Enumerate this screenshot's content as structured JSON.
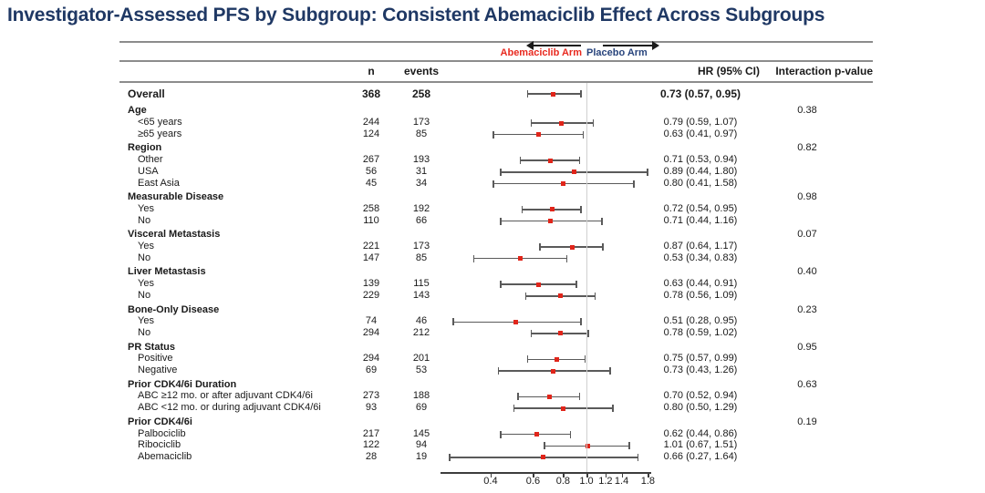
{
  "title": "Investigator-Assessed PFS by Subgroup: Consistent Abemaciclib Effect Across Subgroups",
  "arms": {
    "left": "Abemaciclib Arm",
    "right": "Placebo Arm"
  },
  "columns": {
    "n": "n",
    "events": "events",
    "hr": "HR (95% CI)",
    "p": "Interaction p-value"
  },
  "colors": {
    "title_navy": "#1f3864",
    "abemaciclib_red": "#e8291f",
    "placebo_navy": "#28447c",
    "marker_red": "#e0251a",
    "bar_gray": "#5a5a5a",
    "band_gray": "#ececec",
    "rule_gray": "#8c8c8c",
    "reference_line_gray": "#d0d0d0"
  },
  "chart_data": {
    "type": "scatter",
    "subtype": "forest-plot",
    "title": "Investigator-Assessed PFS by Subgroup: Consistent Abemaciclib Effect Across Subgroups",
    "x_scale": "log",
    "x_range": [
      0.25,
      1.84
    ],
    "x_ticks": [
      0.4,
      0.6,
      0.8,
      1.0,
      1.2,
      1.4,
      1.8
    ],
    "reference_line": 1.0,
    "favors_left_label": "Abemaciclib Arm",
    "favors_right_label": "Placebo Arm",
    "legend_position": "top-center",
    "rows": [
      {
        "kind": "overall",
        "label": "Overall",
        "n": "368",
        "events": "258",
        "hr": 0.73,
        "ci": [
          0.57,
          0.95
        ],
        "hr_text": "0.73 (0.57, 0.95)",
        "shaded": false
      },
      {
        "kind": "group",
        "label": "Age",
        "p": "0.38",
        "shaded": true,
        "items": [
          {
            "label": "<65 years",
            "n": "244",
            "events": "173",
            "hr": 0.79,
            "ci": [
              0.59,
              1.07
            ],
            "hr_text": "0.79 (0.59, 1.07)"
          },
          {
            "label": "≥65 years",
            "n": "124",
            "events": "85",
            "hr": 0.63,
            "ci": [
              0.41,
              0.97
            ],
            "hr_text": "0.63 (0.41, 0.97)"
          }
        ]
      },
      {
        "kind": "group",
        "label": "Region",
        "p": "0.82",
        "shaded": false,
        "items": [
          {
            "label": "Other",
            "n": "267",
            "events": "193",
            "hr": 0.71,
            "ci": [
              0.53,
              0.94
            ],
            "hr_text": "0.71 (0.53, 0.94)"
          },
          {
            "label": "USA",
            "n": "56",
            "events": "31",
            "hr": 0.89,
            "ci": [
              0.44,
              1.8
            ],
            "hr_text": "0.89 (0.44, 1.80)"
          },
          {
            "label": "East Asia",
            "n": "45",
            "events": "34",
            "hr": 0.8,
            "ci": [
              0.41,
              1.58
            ],
            "hr_text": "0.80 (0.41, 1.58)"
          }
        ]
      },
      {
        "kind": "group",
        "label": "Measurable Disease",
        "p": "0.98",
        "shaded": true,
        "items": [
          {
            "label": "Yes",
            "n": "258",
            "events": "192",
            "hr": 0.72,
            "ci": [
              0.54,
              0.95
            ],
            "hr_text": "0.72 (0.54, 0.95)"
          },
          {
            "label": "No",
            "n": "110",
            "events": "66",
            "hr": 0.71,
            "ci": [
              0.44,
              1.16
            ],
            "hr_text": "0.71 (0.44, 1.16)"
          }
        ]
      },
      {
        "kind": "group",
        "label": "Visceral Metastasis",
        "p": "0.07",
        "shaded": false,
        "items": [
          {
            "label": "Yes",
            "n": "221",
            "events": "173",
            "hr": 0.87,
            "ci": [
              0.64,
              1.17
            ],
            "hr_text": "0.87 (0.64, 1.17)"
          },
          {
            "label": "No",
            "n": "147",
            "events": "85",
            "hr": 0.53,
            "ci": [
              0.34,
              0.83
            ],
            "hr_text": "0.53 (0.34, 0.83)"
          }
        ]
      },
      {
        "kind": "group",
        "label": "Liver Metastasis",
        "p": "0.40",
        "shaded": true,
        "items": [
          {
            "label": "Yes",
            "n": "139",
            "events": "115",
            "hr": 0.63,
            "ci": [
              0.44,
              0.91
            ],
            "hr_text": "0.63 (0.44, 0.91)"
          },
          {
            "label": "No",
            "n": "229",
            "events": "143",
            "hr": 0.78,
            "ci": [
              0.56,
              1.09
            ],
            "hr_text": "0.78 (0.56, 1.09)"
          }
        ]
      },
      {
        "kind": "group",
        "label": "Bone-Only Disease",
        "p": "0.23",
        "shaded": false,
        "items": [
          {
            "label": "Yes",
            "n": "74",
            "events": "46",
            "hr": 0.51,
            "ci": [
              0.28,
              0.95
            ],
            "hr_text": "0.51 (0.28, 0.95)"
          },
          {
            "label": "No",
            "n": "294",
            "events": "212",
            "hr": 0.78,
            "ci": [
              0.59,
              1.02
            ],
            "hr_text": "0.78 (0.59, 1.02)"
          }
        ]
      },
      {
        "kind": "group",
        "label": "PR Status",
        "p": "0.95",
        "shaded": true,
        "items": [
          {
            "label": "Positive",
            "n": "294",
            "events": "201",
            "hr": 0.75,
            "ci": [
              0.57,
              0.99
            ],
            "hr_text": "0.75 (0.57, 0.99)"
          },
          {
            "label": "Negative",
            "n": "69",
            "events": "53",
            "hr": 0.73,
            "ci": [
              0.43,
              1.26
            ],
            "hr_text": "0.73 (0.43, 1.26)"
          }
        ]
      },
      {
        "kind": "group",
        "label": "Prior CDK4/6i Duration",
        "p": "0.63",
        "shaded": false,
        "items": [
          {
            "label": "ABC ≥12 mo. or after adjuvant CDK4/6i",
            "n": "273",
            "events": "188",
            "hr": 0.7,
            "ci": [
              0.52,
              0.94
            ],
            "hr_text": "0.70 (0.52, 0.94)"
          },
          {
            "label": "ABC <12 mo. or during adjuvant CDK4/6i",
            "n": "93",
            "events": "69",
            "hr": 0.8,
            "ci": [
              0.5,
              1.29
            ],
            "hr_text": "0.80 (0.50, 1.29)"
          }
        ]
      },
      {
        "kind": "group",
        "label": "Prior CDK4/6i",
        "p": "0.19",
        "shaded": true,
        "items": [
          {
            "label": "Palbociclib",
            "n": "217",
            "events": "145",
            "hr": 0.62,
            "ci": [
              0.44,
              0.86
            ],
            "hr_text": "0.62 (0.44, 0.86)"
          },
          {
            "label": "Ribociclib",
            "n": "122",
            "events": "94",
            "hr": 1.01,
            "ci": [
              0.67,
              1.51
            ],
            "hr_text": "1.01 (0.67, 1.51)"
          },
          {
            "label": "Abemaciclib",
            "n": "28",
            "events": "19",
            "hr": 0.66,
            "ci": [
              0.27,
              1.64
            ],
            "hr_text": "0.66 (0.27, 1.64)"
          }
        ]
      }
    ]
  }
}
